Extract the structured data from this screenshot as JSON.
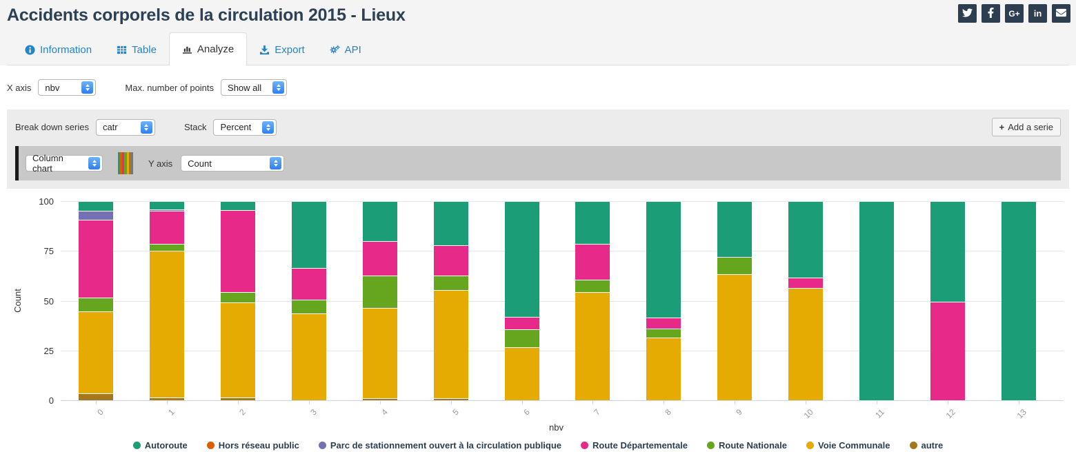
{
  "header": {
    "title": "Accidents corporels de la circulation 2015 - Lieux",
    "social_google_plus": "G+",
    "social_linkedin": "in"
  },
  "tabs": [
    {
      "label": "Information"
    },
    {
      "label": "Table"
    },
    {
      "label": "Analyze",
      "active": true
    },
    {
      "label": "Export"
    },
    {
      "label": "API"
    }
  ],
  "controls": {
    "x_axis_label": "X axis",
    "x_axis_value": "nbv",
    "max_points_label": "Max. number of points",
    "max_points_value": "Show all",
    "breakdown_label": "Break down series",
    "breakdown_value": "catr",
    "stack_label": "Stack",
    "stack_value": "Percent",
    "add_serie_plus": "+",
    "add_serie_label": "Add a serie",
    "chart_type_value": "Column chart",
    "y_axis_label": "Y axis",
    "y_axis_value": "Count"
  },
  "swatch_colors": [
    "#1b9e77",
    "#d95f02",
    "#e7298a",
    "#66a61e",
    "#e6ab02",
    "#a6761d",
    "#777777"
  ],
  "chart_data": {
    "type": "bar",
    "stacked": "percent",
    "xlabel": "nbv",
    "ylabel": "Count",
    "ylim": [
      0,
      100
    ],
    "yticks": [
      0,
      25,
      50,
      75,
      100
    ],
    "grid": true,
    "legend_position": "bottom",
    "categories": [
      "0",
      "1",
      "2",
      "3",
      "4",
      "5",
      "6",
      "7",
      "8",
      "9",
      "10",
      "11",
      "12",
      "13"
    ],
    "series": [
      {
        "name": "Autoroute",
        "color": "#1b9e77",
        "values": [
          5,
          4,
          4.5,
          33.5,
          20,
          22,
          58,
          21.5,
          58.5,
          28,
          38.5,
          100,
          50.5,
          100
        ]
      },
      {
        "name": "Hors réseau public",
        "color": "#d95f02",
        "values": [
          0,
          0,
          0,
          0,
          0,
          0,
          0,
          0,
          0,
          0,
          0,
          0,
          0,
          0
        ]
      },
      {
        "name": "Parc de stationnement ouvert à la circulation publique",
        "color": "#7570b3",
        "values": [
          4.5,
          1,
          0,
          0,
          0,
          0,
          0,
          0,
          0,
          0,
          0,
          0,
          0,
          0
        ]
      },
      {
        "name": "Route Départementale",
        "color": "#e7298a",
        "values": [
          39,
          16.5,
          41,
          16,
          17.5,
          15.5,
          6.5,
          18,
          5.5,
          0,
          5,
          0,
          49.5,
          0
        ]
      },
      {
        "name": "Route Nationale",
        "color": "#66a61e",
        "values": [
          7,
          3.5,
          5.5,
          7,
          16,
          7,
          9,
          6,
          4.5,
          8.5,
          0,
          0,
          0,
          0
        ]
      },
      {
        "name": "Voie Communale",
        "color": "#e6ab02",
        "values": [
          41,
          73.5,
          47.5,
          43.5,
          45.5,
          54.5,
          26.5,
          54.5,
          31.5,
          63.5,
          56.5,
          0,
          0,
          0
        ]
      },
      {
        "name": "autre",
        "color": "#a6761d",
        "values": [
          3.5,
          1.5,
          1.5,
          0,
          1,
          1,
          0,
          0,
          0,
          0,
          0,
          0,
          0,
          0
        ]
      }
    ]
  }
}
